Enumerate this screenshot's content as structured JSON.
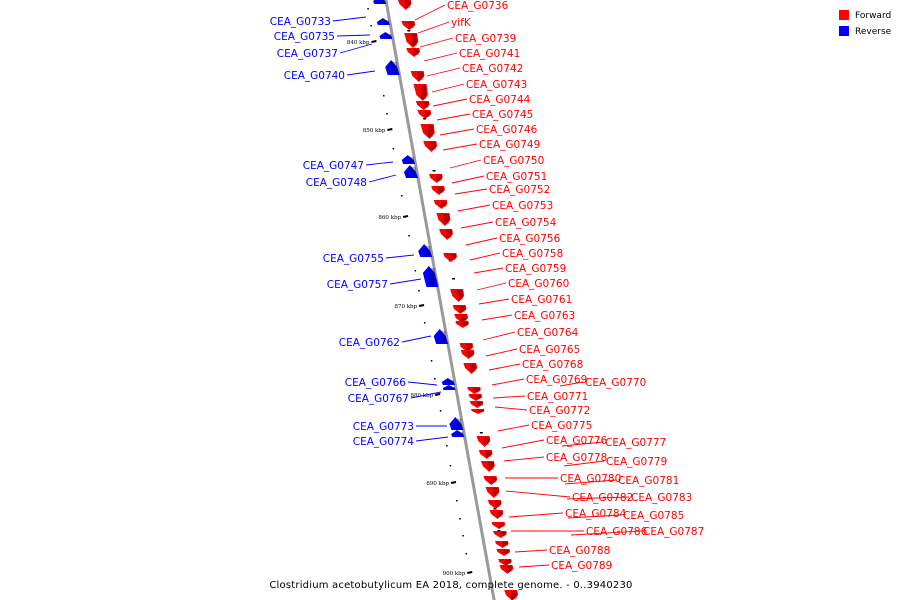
{
  "caption": "Clostridium acetobutylicum EA 2018, complete genome. - 0..3940230",
  "legend": {
    "forward": {
      "label": "Forward",
      "color": "#ff0000"
    },
    "reverse": {
      "label": "Reverse",
      "color": "#0000ff"
    }
  },
  "axis": {
    "color": "#999999"
  },
  "ticks": [
    "840 kbp",
    "850 kbp",
    "860 kbp",
    "870 kbp",
    "880 kbp",
    "890 kbp",
    "900 kbp"
  ],
  "forward_genes": [
    "CEA_G0736",
    "yifK",
    "CEA_G0739",
    "CEA_G0741",
    "CEA_G0742",
    "CEA_G0743",
    "CEA_G0744",
    "CEA_G0745",
    "CEA_G0746",
    "CEA_G0749",
    "CEA_G0750",
    "CEA_G0751",
    "CEA_G0752",
    "CEA_G0753",
    "CEA_G0754",
    "CEA_G0756",
    "CEA_G0758",
    "CEA_G0759",
    "CEA_G0760",
    "CEA_G0761",
    "CEA_G0763",
    "CEA_G0764",
    "CEA_G0765",
    "CEA_G0768",
    "CEA_G0769",
    "CEA_G0770",
    "CEA_G0771",
    "CEA_G0772",
    "CEA_G0775",
    "CEA_G0776",
    "CEA_G0777",
    "CEA_G0778",
    "CEA_G0779",
    "CEA_G0780",
    "CEA_G0781",
    "CEA_G0782",
    "CEA_G0783",
    "CEA_G0784",
    "CEA_G0785",
    "CEA_G0786",
    "CEA_G0787",
    "CEA_G0788",
    "CEA_G0789"
  ],
  "reverse_genes": [
    "CEA_G0733",
    "CEA_G0735",
    "CEA_G0737",
    "CEA_G0740",
    "CEA_G0747",
    "CEA_G0748",
    "CEA_G0755",
    "CEA_G0757",
    "CEA_G0762",
    "CEA_G0766",
    "CEA_G0767",
    "CEA_G0773",
    "CEA_G0774"
  ]
}
